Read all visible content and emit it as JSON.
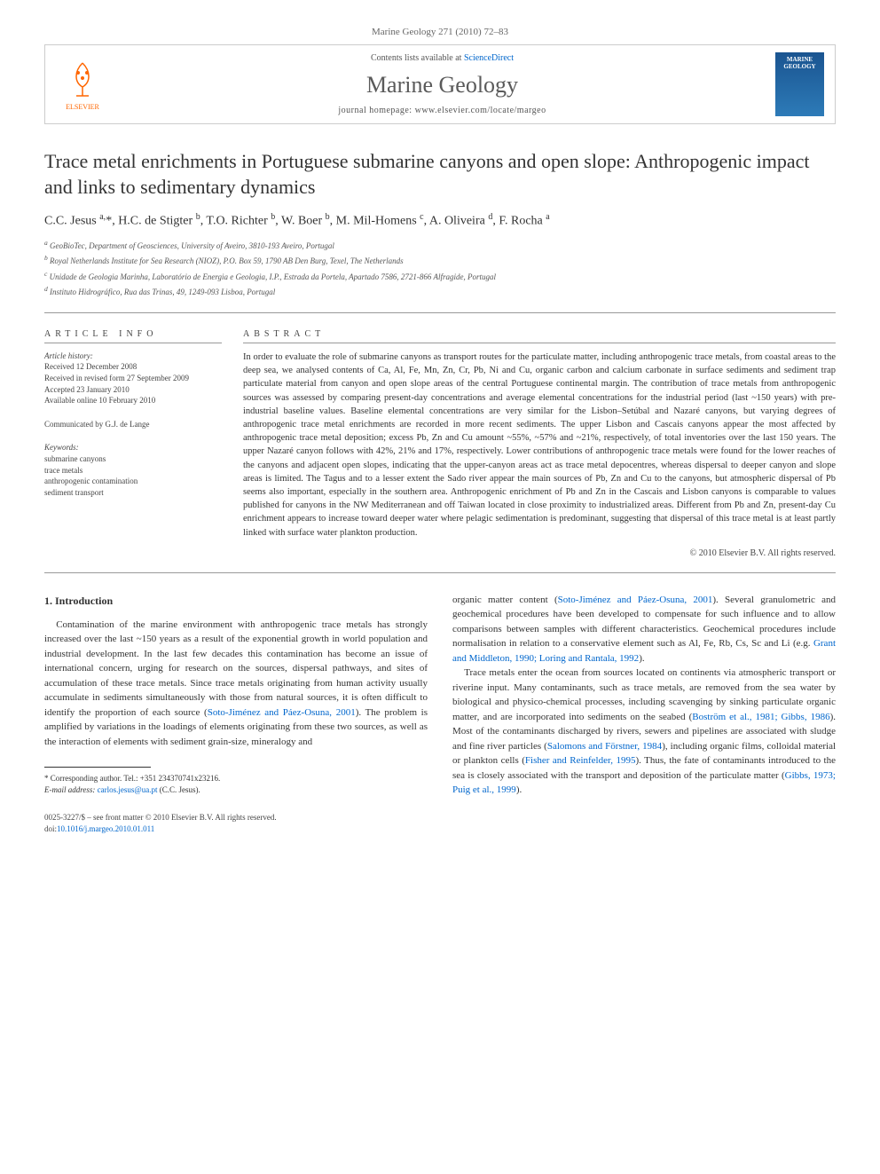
{
  "header": {
    "citation": "Marine Geology 271 (2010) 72–83",
    "contents_prefix": "Contents lists available at ",
    "contents_link": "ScienceDirect",
    "journal_name": "Marine Geology",
    "homepage_label": "journal homepage: ",
    "homepage_url": "www.elsevier.com/locate/margeo",
    "publisher": "ELSEVIER",
    "cover_title": "MARINE GEOLOGY"
  },
  "title": "Trace metal enrichments in Portuguese submarine canyons and open slope: Anthropogenic impact and links to sedimentary dynamics",
  "authors_html": "C.C. Jesus <sup>a,</sup>*, H.C. de Stigter <sup>b</sup>, T.O. Richter <sup>b</sup>, W. Boer <sup>b</sup>, M. Mil-Homens <sup>c</sup>, A. Oliveira <sup>d</sup>, F. Rocha <sup>a</sup>",
  "affiliations": [
    "a GeoBioTec, Department of Geosciences, University of Aveiro, 3810-193 Aveiro, Portugal",
    "b Royal Netherlands Institute for Sea Research (NIOZ), P.O. Box 59, 1790 AB Den Burg, Texel, The Netherlands",
    "c Unidade de Geologia Marinha, Laboratório de Energia e Geologia, I.P., Estrada da Portela, Apartado 7586, 2721-866 Alfragide, Portugal",
    "d Instituto Hidrográfico, Rua das Trinas, 49, 1249-093 Lisboa, Portugal"
  ],
  "article_info": {
    "label": "ARTICLE INFO",
    "history_label": "Article history:",
    "received": "Received 12 December 2008",
    "revised": "Received in revised form 27 September 2009",
    "accepted": "Accepted 23 January 2010",
    "online": "Available online 10 February 2010",
    "communicated": "Communicated by G.J. de Lange",
    "keywords_label": "Keywords:",
    "keywords": [
      "submarine canyons",
      "trace metals",
      "anthropogenic contamination",
      "sediment transport"
    ]
  },
  "abstract": {
    "label": "ABSTRACT",
    "text": "In order to evaluate the role of submarine canyons as transport routes for the particulate matter, including anthropogenic trace metals, from coastal areas to the deep sea, we analysed contents of Ca, Al, Fe, Mn, Zn, Cr, Pb, Ni and Cu, organic carbon and calcium carbonate in surface sediments and sediment trap particulate material from canyon and open slope areas of the central Portuguese continental margin. The contribution of trace metals from anthropogenic sources was assessed by comparing present-day concentrations and average elemental concentrations for the industrial period (last ~150 years) with pre-industrial baseline values. Baseline elemental concentrations are very similar for the Lisbon–Setúbal and Nazaré canyons, but varying degrees of anthropogenic trace metal enrichments are recorded in more recent sediments. The upper Lisbon and Cascais canyons appear the most affected by anthropogenic trace metal deposition; excess Pb, Zn and Cu amount ~55%, ~57% and ~21%, respectively, of total inventories over the last 150 years. The upper Nazaré canyon follows with 42%, 21% and 17%, respectively. Lower contributions of anthropogenic trace metals were found for the lower reaches of the canyons and adjacent open slopes, indicating that the upper-canyon areas act as trace metal depocentres, whereas dispersal to deeper canyon and slope areas is limited. The Tagus and to a lesser extent the Sado river appear the main sources of Pb, Zn and Cu to the canyons, but atmospheric dispersal of Pb seems also important, especially in the southern area. Anthropogenic enrichment of Pb and Zn in the Cascais and Lisbon canyons is comparable to values published for canyons in the NW Mediterranean and off Taiwan located in close proximity to industrialized areas. Different from Pb and Zn, present-day Cu enrichment appears to increase toward deeper water where pelagic sedimentation is predominant, suggesting that dispersal of this trace metal is at least partly linked with surface water plankton production.",
    "copyright": "© 2010 Elsevier B.V. All rights reserved."
  },
  "body": {
    "heading": "1. Introduction",
    "col1_p1_pre": "Contamination of the marine environment with anthropogenic trace metals has strongly increased over the last ~150 years as a result of the exponential growth in world population and industrial development. In the last few decades this contamination has become an issue of international concern, urging for research on the sources, dispersal pathways, and sites of accumulation of these trace metals. Since trace metals originating from human activity usually accumulate in sediments simultaneously with those from natural sources, it is often difficult to identify the proportion of each source (",
    "ref1": "Soto-Jiménez and Páez-Osuna, 2001",
    "col1_p1_post": "). The problem is amplified by variations in the loadings of elements originating from these two sources, as well as the interaction of elements with sediment grain-size, mineralogy and",
    "col2_p1_pre": "organic matter content (",
    "ref2": "Soto-Jiménez and Páez-Osuna, 2001",
    "col2_p1_mid": "). Several granulometric and geochemical procedures have been developed to compensate for such influence and to allow comparisons between samples with different characteristics. Geochemical procedures include normalisation in relation to a conservative element such as Al, Fe, Rb, Cs, Sc and Li (e.g. ",
    "ref3": "Grant and Middleton, 1990; Loring and Rantala, 1992",
    "col2_p1_post": ").",
    "col2_p2_pre": "Trace metals enter the ocean from sources located on continents via atmospheric transport or riverine input. Many contaminants, such as trace metals, are removed from the sea water by biological and physico-chemical processes, including scavenging by sinking particulate organic matter, and are incorporated into sediments on the seabed (",
    "ref4": "Boström et al., 1981; Gibbs, 1986",
    "col2_p2_mid1": "). Most of the contaminants discharged by rivers, sewers and pipelines are associated with sludge and fine river particles (",
    "ref5": "Salomons and Förstner, 1984",
    "col2_p2_mid2": "), including organic films, colloidal material or plankton cells (",
    "ref6": "Fisher and Reinfelder, 1995",
    "col2_p2_mid3": "). Thus, the fate of contaminants introduced to the sea is closely associated with the transport and deposition of the particulate matter (",
    "ref7": "Gibbs, 1973; Puig et al., 1999",
    "col2_p2_post": ")."
  },
  "footnote": {
    "corr_label": "* Corresponding author. Tel.: +351 234370741x23216.",
    "email_label": "E-mail address: ",
    "email": "carlos.jesus@ua.pt",
    "email_who": " (C.C. Jesus)."
  },
  "footer": {
    "issn": "0025-3227/$ – see front matter © 2010 Elsevier B.V. All rights reserved.",
    "doi_label": "doi:",
    "doi": "10.1016/j.margeo.2010.01.011"
  },
  "colors": {
    "link": "#0066cc",
    "elsevier_orange": "#ff6600",
    "rule": "#999999",
    "text": "#333333"
  }
}
